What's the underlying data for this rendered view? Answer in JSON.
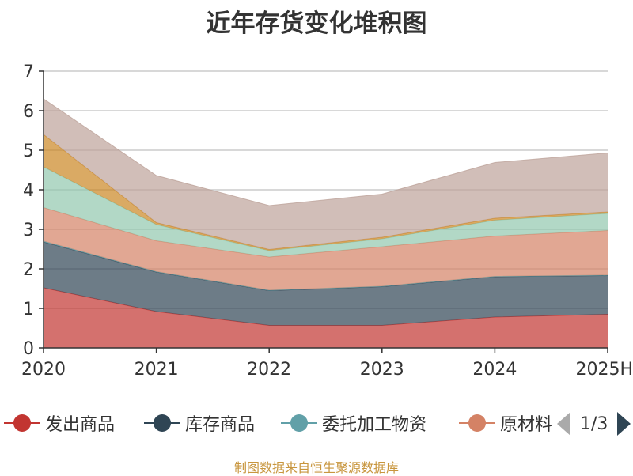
{
  "colors": {
    "发出商品": "#c23531",
    "库存商品": "#2f4554",
    "委托加工物资": "#61a0a8",
    "原材料": "#d48265",
    "series5": "#91c7ae",
    "series6": "#ca8622",
    "series7": "#bda29a"
  },
  "legend": {
    "pager_text": "1/3"
  },
  "footer": "制图数据来自恒生聚源数据库",
  "chart_data": {
    "type": "area",
    "stacked": true,
    "title": "近年存货变化堆积图",
    "x": [
      "2020",
      "2021",
      "2022",
      "2023",
      "2024",
      "2025H"
    ],
    "ylim": [
      0,
      7
    ],
    "yticks": [
      0,
      1,
      2,
      3,
      4,
      5,
      6,
      7
    ],
    "grid": true,
    "legend_position": "bottom",
    "series": [
      {
        "name": "发出商品",
        "color": "#c23531",
        "values": [
          1.52,
          0.92,
          0.57,
          0.57,
          0.78,
          0.85
        ]
      },
      {
        "name": "库存商品",
        "color": "#2f4554",
        "values": [
          1.16,
          1.0,
          0.88,
          0.98,
          1.02,
          0.98
        ]
      },
      {
        "name": "委托加工物资",
        "color": "#61a0a8",
        "values": [
          0.02,
          0.01,
          0.01,
          0.01,
          0.01,
          0.01
        ]
      },
      {
        "name": "原材料",
        "color": "#d48265",
        "values": [
          0.85,
          0.78,
          0.84,
          1.0,
          1.02,
          1.13
        ]
      },
      {
        "color": "#91c7ae",
        "values": [
          1.03,
          0.41,
          0.16,
          0.2,
          0.4,
          0.43
        ]
      },
      {
        "color": "#ca8622",
        "values": [
          0.82,
          0.05,
          0.03,
          0.04,
          0.05,
          0.04
        ]
      },
      {
        "color": "#bda29a",
        "values": [
          0.9,
          1.19,
          1.11,
          1.09,
          1.41,
          1.49
        ]
      }
    ]
  }
}
